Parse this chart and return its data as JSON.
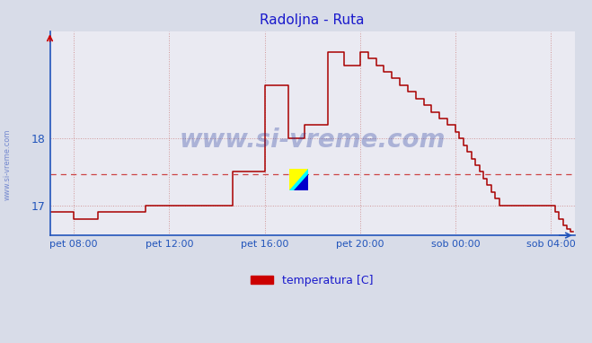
{
  "title": "Radoljna - Ruta",
  "title_color": "#1a1acc",
  "line_color": "#aa0000",
  "line_width": 1.1,
  "avg_line_color": "#cc4444",
  "avg_line_value": 17.47,
  "axis_color": "#2255bb",
  "background_color": "#d8dce8",
  "plot_bg_color": "#eaeaf2",
  "grid_color": "#cc8888",
  "watermark_text": "www.si-vreme.com",
  "watermark_color": "#1a3399",
  "sidebar_text": "www.si-vreme.com",
  "sidebar_color": "#2244bb",
  "legend_label": "temperatura [C]",
  "legend_color": "#cc0000",
  "yticks": [
    17,
    18
  ],
  "ylim": [
    16.55,
    19.6
  ],
  "xtick_labels": [
    "pet 08:00",
    "pet 12:00",
    "pet 16:00",
    "pet 20:00",
    "sob 00:00",
    "sob 04:00"
  ],
  "xtick_positions": [
    60,
    300,
    540,
    780,
    1020,
    1260
  ],
  "xlim": [
    0,
    1320
  ],
  "time_minutes": [
    0,
    10,
    20,
    30,
    40,
    50,
    60,
    70,
    80,
    90,
    100,
    110,
    120,
    130,
    140,
    150,
    160,
    170,
    180,
    190,
    200,
    210,
    220,
    230,
    240,
    250,
    260,
    270,
    280,
    290,
    300,
    310,
    320,
    330,
    340,
    350,
    360,
    370,
    380,
    390,
    400,
    410,
    420,
    430,
    440,
    450,
    460,
    470,
    480,
    490,
    500,
    510,
    520,
    530,
    540,
    550,
    560,
    570,
    580,
    590,
    600,
    610,
    620,
    630,
    640,
    650,
    660,
    670,
    680,
    690,
    700,
    710,
    720,
    730,
    740,
    750,
    760,
    770,
    780,
    790,
    800,
    810,
    820,
    830,
    840,
    850,
    860,
    870,
    880,
    890,
    900,
    910,
    920,
    930,
    940,
    950,
    960,
    970,
    980,
    990,
    1000,
    1010,
    1020,
    1030,
    1040,
    1050,
    1060,
    1070,
    1080,
    1090,
    1100,
    1110,
    1120,
    1130,
    1140,
    1150,
    1160,
    1170,
    1180,
    1190,
    1200,
    1210,
    1220,
    1230,
    1240,
    1250,
    1260,
    1270,
    1280,
    1290,
    1300,
    1310,
    1315
  ],
  "temp_values": [
    16.9,
    16.9,
    16.9,
    16.9,
    16.9,
    16.9,
    16.8,
    16.8,
    16.8,
    16.8,
    16.8,
    16.8,
    16.9,
    16.9,
    16.9,
    16.9,
    16.9,
    16.9,
    16.9,
    16.9,
    16.9,
    16.9,
    16.9,
    16.9,
    17.0,
    17.0,
    17.0,
    17.0,
    17.0,
    17.0,
    17.0,
    17.0,
    17.0,
    17.0,
    17.0,
    17.0,
    17.0,
    17.0,
    17.0,
    17.0,
    17.0,
    17.0,
    17.0,
    17.0,
    17.0,
    17.0,
    17.5,
    17.5,
    17.5,
    17.5,
    17.5,
    17.5,
    17.5,
    17.5,
    18.8,
    18.8,
    18.8,
    18.8,
    18.8,
    18.8,
    18.0,
    18.0,
    18.0,
    18.0,
    18.2,
    18.2,
    18.2,
    18.2,
    18.2,
    18.2,
    19.3,
    19.3,
    19.3,
    19.3,
    19.1,
    19.1,
    19.1,
    19.1,
    19.3,
    19.3,
    19.2,
    19.2,
    19.1,
    19.1,
    19.0,
    19.0,
    18.9,
    18.9,
    18.8,
    18.8,
    18.7,
    18.7,
    18.6,
    18.6,
    18.5,
    18.5,
    18.4,
    18.4,
    18.3,
    18.3,
    18.2,
    18.2,
    18.1,
    18.0,
    17.9,
    17.8,
    17.7,
    17.6,
    17.5,
    17.4,
    17.3,
    17.2,
    17.1,
    17.0,
    17.0,
    17.0,
    17.0,
    17.0,
    17.0,
    17.0,
    17.0,
    17.0,
    17.0,
    17.0,
    17.0,
    17.0,
    17.0,
    16.9,
    16.8,
    16.7,
    16.65,
    16.6,
    16.6
  ]
}
